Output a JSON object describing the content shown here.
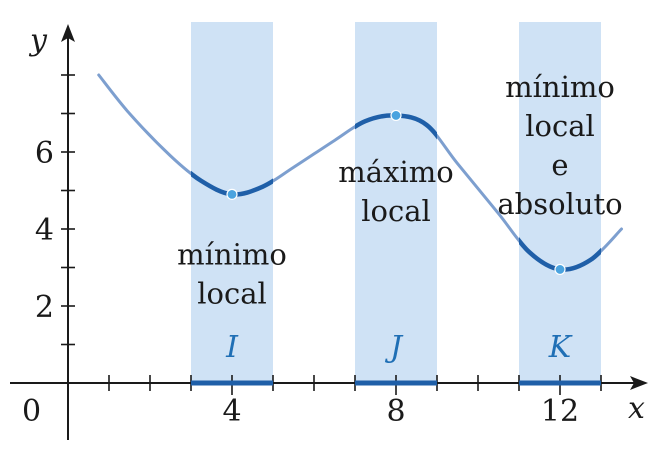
{
  "colors": {
    "band": "#cfe2f5",
    "curve_light": "#7d9fcf",
    "curve_dark": "#1f5fa8",
    "point": "#4aa3df",
    "axis": "#1a1a1a",
    "interval_label": "#1f6fb5"
  },
  "chart_data": {
    "type": "line",
    "xlabel": "x",
    "ylabel": "y",
    "origin_label": "0",
    "xlim": [
      0,
      13.8
    ],
    "ylim": [
      0,
      8.1
    ],
    "x_ticks": [
      {
        "value": 4,
        "label": "4"
      },
      {
        "value": 8,
        "label": "8"
      },
      {
        "value": 12,
        "label": "12"
      }
    ],
    "y_ticks": [
      {
        "value": 2,
        "label": "2"
      },
      {
        "value": 4,
        "label": "4"
      },
      {
        "value": 6,
        "label": "6"
      }
    ],
    "intervals": [
      {
        "label": "I",
        "x": [
          3,
          5
        ]
      },
      {
        "label": "J",
        "x": [
          7,
          9
        ]
      },
      {
        "label": "K",
        "x": [
          11,
          13
        ]
      }
    ],
    "curve": {
      "x": [
        0.75,
        1.5,
        2.5,
        3.25,
        4.0,
        4.75,
        5.5,
        6.5,
        7.25,
        8.0,
        8.75,
        9.5,
        10.5,
        11.25,
        12.0,
        12.75,
        13.5
      ],
      "y": [
        8.0,
        7.0,
        5.9,
        5.25,
        4.9,
        5.1,
        5.6,
        6.3,
        6.8,
        6.95,
        6.7,
        5.7,
        4.4,
        3.4,
        2.95,
        3.2,
        4.0
      ]
    },
    "extrema": [
      {
        "x": 4,
        "y": 4.9,
        "kind": "min"
      },
      {
        "x": 8,
        "y": 6.95,
        "kind": "max"
      },
      {
        "x": 12,
        "y": 2.95,
        "kind": "min"
      }
    ],
    "annotations": [
      {
        "lines": [
          "mínimo",
          "local"
        ],
        "x": 4,
        "y": 3.7
      },
      {
        "lines": [
          "máximo",
          "local"
        ],
        "x": 8,
        "y": 5.85
      },
      {
        "lines": [
          "mínimo",
          "local",
          "e",
          "absoluto"
        ],
        "x": 12,
        "y": 8.05
      }
    ]
  }
}
